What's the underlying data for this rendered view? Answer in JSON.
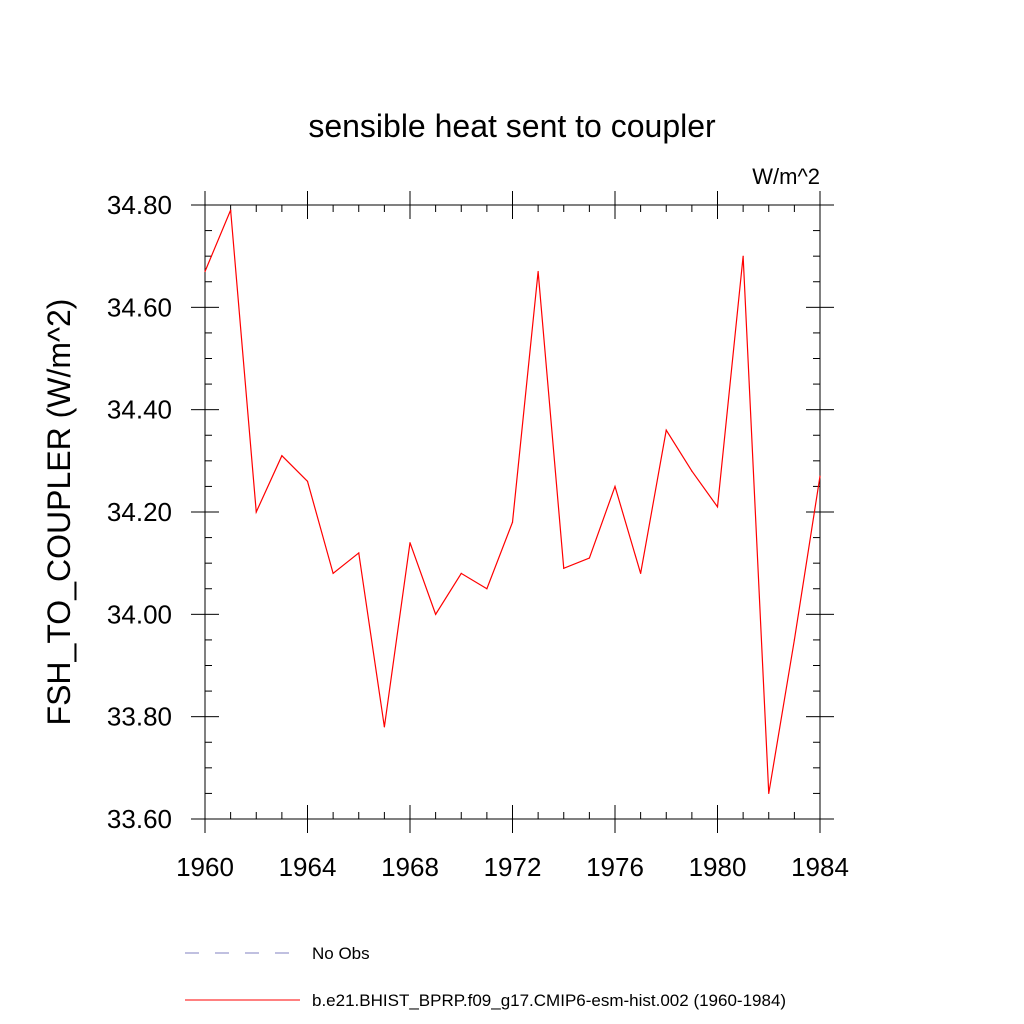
{
  "chart_data": {
    "type": "line",
    "title": "sensible heat sent to coupler",
    "units": "W/m^2",
    "ylabel": "FSH_TO_COUPLER  (W/m^2)",
    "xlabel": "",
    "xlim": [
      1960,
      1984
    ],
    "ylim": [
      33.6,
      34.8
    ],
    "xticks": [
      1960,
      1964,
      1968,
      1972,
      1976,
      1980,
      1984
    ],
    "xtick_labels": [
      "1960",
      "1964",
      "1968",
      "1972",
      "1976",
      "1980",
      "1984"
    ],
    "yticks": [
      33.6,
      33.8,
      34.0,
      34.2,
      34.4,
      34.6,
      34.8
    ],
    "ytick_labels": [
      "33.60",
      "33.80",
      "34.00",
      "34.20",
      "34.40",
      "34.60",
      "34.80"
    ],
    "grid": false,
    "legend_position": "bottom",
    "series": [
      {
        "name": "b.e21.BHIST_BPRP.f09_g17.CMIP6-esm-hist.002 (1960-1984)",
        "color": "#ff0000",
        "style": "solid",
        "x": [
          1960,
          1961,
          1962,
          1963,
          1964,
          1965,
          1966,
          1967,
          1968,
          1969,
          1970,
          1971,
          1972,
          1973,
          1974,
          1975,
          1976,
          1977,
          1978,
          1979,
          1980,
          1981,
          1982,
          1983,
          1984
        ],
        "y": [
          34.67,
          34.79,
          34.2,
          34.31,
          34.26,
          34.08,
          34.12,
          33.78,
          34.14,
          34.0,
          34.08,
          34.05,
          34.18,
          34.67,
          34.09,
          34.11,
          34.25,
          34.08,
          34.36,
          34.28,
          34.21,
          34.7,
          33.65,
          33.95,
          34.27
        ]
      }
    ],
    "legend": [
      {
        "label": "No Obs",
        "color": "#8080c0",
        "style": "dashed"
      },
      {
        "label": "b.e21.BHIST_BPRP.f09_g17.CMIP6-esm-hist.002 (1960-1984)",
        "color": "#ff0000",
        "style": "solid"
      }
    ]
  }
}
